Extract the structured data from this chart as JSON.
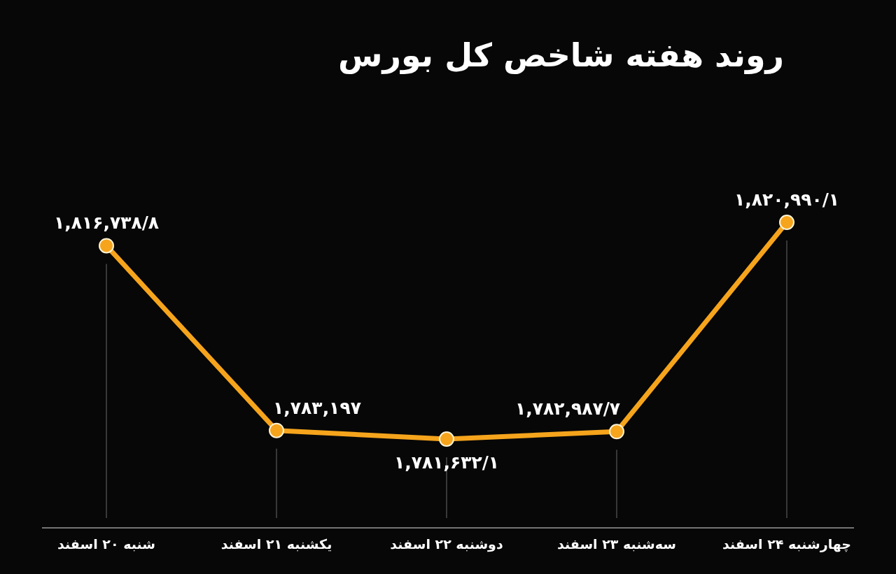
{
  "chart_data": {
    "type": "line",
    "title": "روند هفته شاخص کل بورس",
    "categories": [
      "شنبه ۲۰ اسفند",
      "یکشنبه ۲۱ اسفند",
      "دوشنبه ۲۲ اسفند",
      "سه‌شنبه ۲۳ اسفند",
      "چهارشنبه ۲۴ اسفند"
    ],
    "values": [
      1816738.8,
      1783197,
      1781632.1,
      1782987.7,
      1820990.1
    ],
    "value_labels": [
      "۱,۸۱۶,۷۳۸/۸",
      "۱,۷۸۳,۱۹۷",
      "۱,۷۸۱,۶۳۲/۱",
      "۱,۷۸۲,۹۸۷/۷",
      "۱,۸۲۰,۹۹۰/۱"
    ],
    "color": "#f5a41c",
    "marker": "circle",
    "grid": "x"
  }
}
